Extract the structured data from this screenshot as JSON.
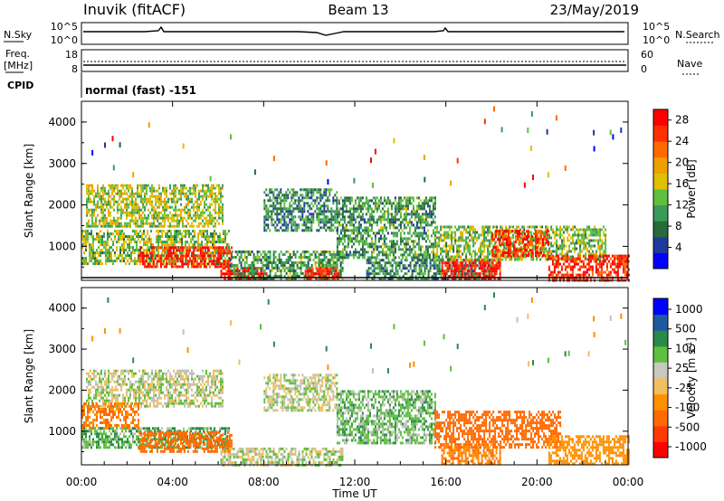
{
  "header": {
    "title_left": "Inuvik (fitACF)",
    "title_center": "Beam 13",
    "title_right": "23/May/2019"
  },
  "top_panels": {
    "nsky_label": "N.Sky",
    "nsearch_label": "N.Search",
    "nsky_ticks": [
      "10^5",
      "10^0"
    ],
    "nsearch_ticks": [
      "10^5",
      "10^0"
    ],
    "freq_label_1": "Freq.",
    "freq_label_2": "[MHz]",
    "freq_ticks": [
      "18",
      "8"
    ],
    "nave_label": "Nave",
    "nave_ticks": [
      "60",
      "0"
    ],
    "cpid_label": "CPID",
    "cpid_text": "normal (fast) -151"
  },
  "colors": {
    "power_scale": [
      "#0000ff",
      "#1f3a9a",
      "#2a6a3a",
      "#3a9a5a",
      "#5fbf3f",
      "#e0c000",
      "#f0a000",
      "#ff6a00",
      "#ff3000",
      "#ff0000"
    ],
    "velocity_scale": [
      "#ff0000",
      "#ff3a00",
      "#ff6a00",
      "#ff9000",
      "#f0c060",
      "#c8c8c0",
      "#5fbf3f",
      "#2a8a4a",
      "#1f5aa0",
      "#0000ff"
    ],
    "ground_scatter": "#c0c0b8"
  },
  "chart_data": [
    {
      "type": "heatmap",
      "name": "power",
      "ylabel": "Slant Range [km]",
      "xlabel": "",
      "y_ticks": [
        "1000",
        "2000",
        "3000",
        "4000"
      ],
      "ylim": [
        180,
        4500
      ],
      "colorbar_label": "Power [dB]",
      "colorbar_ticks": [
        "4",
        "8",
        "12",
        "16",
        "20",
        "24",
        "28"
      ],
      "colorbar_range": [
        0,
        30
      ],
      "x_range_hours": [
        0,
        24
      ],
      "regions": [
        {
          "x0": 0.2,
          "x1": 6.2,
          "y0": 1500,
          "y1": 2500,
          "level": 0.5
        },
        {
          "x0": 0.0,
          "x1": 6.5,
          "y0": 600,
          "y1": 1400,
          "level": 0.45
        },
        {
          "x0": 2.5,
          "x1": 6.6,
          "y0": 500,
          "y1": 1000,
          "level": 0.9
        },
        {
          "x0": 6.1,
          "x1": 8.1,
          "y0": 180,
          "y1": 500,
          "level": 0.95
        },
        {
          "x0": 6.5,
          "x1": 11.5,
          "y0": 200,
          "y1": 900,
          "level": 0.35
        },
        {
          "x0": 8.0,
          "x1": 11.2,
          "y0": 1400,
          "y1": 2400,
          "level": 0.3
        },
        {
          "x0": 9.8,
          "x1": 11.3,
          "y0": 180,
          "y1": 500,
          "level": 0.92
        },
        {
          "x0": 11.2,
          "x1": 15.5,
          "y0": 700,
          "y1": 2200,
          "level": 0.35
        },
        {
          "x0": 12.5,
          "x1": 18.0,
          "y0": 200,
          "y1": 700,
          "level": 0.3
        },
        {
          "x0": 15.8,
          "x1": 18.4,
          "y0": 200,
          "y1": 700,
          "level": 0.92
        },
        {
          "x0": 15.5,
          "x1": 23.0,
          "y0": 700,
          "y1": 1500,
          "level": 0.45
        },
        {
          "x0": 18.0,
          "x1": 20.5,
          "y0": 800,
          "y1": 1400,
          "level": 0.85
        },
        {
          "x0": 20.5,
          "x1": 24.0,
          "y0": 200,
          "y1": 800,
          "level": 0.88
        }
      ]
    },
    {
      "type": "heatmap",
      "name": "velocity",
      "ylabel": "Slant Range [km]",
      "xlabel": "Time UT",
      "y_ticks": [
        "1000",
        "2000",
        "3000",
        "4000"
      ],
      "ylim": [
        180,
        4500
      ],
      "x_ticks": [
        "00:00",
        "04:00",
        "08:00",
        "12:00",
        "16:00",
        "20:00",
        "00:00"
      ],
      "x_range_hours": [
        0,
        24
      ],
      "colorbar_label": "Velocity [m s",
      "colorbar_label_sup": "-1",
      "colorbar_label_close": "]",
      "colorbar_ticks": [
        "1000",
        "500",
        "100",
        "25",
        "-25",
        "-100",
        "-500",
        "-1000"
      ],
      "regions": [
        {
          "x0": 0.2,
          "x1": 6.2,
          "y0": 1600,
          "y1": 2500,
          "value": 0
        },
        {
          "x0": 0.0,
          "x1": 2.5,
          "y0": 1100,
          "y1": 1700,
          "value": -300
        },
        {
          "x0": 0.0,
          "x1": 6.5,
          "y0": 600,
          "y1": 1100,
          "value": 80
        },
        {
          "x0": 2.5,
          "x1": 6.6,
          "y0": 500,
          "y1": 1000,
          "value": -400
        },
        {
          "x0": 6.1,
          "x1": 11.5,
          "y0": 180,
          "y1": 600,
          "value": 0
        },
        {
          "x0": 8.0,
          "x1": 11.2,
          "y0": 1500,
          "y1": 2400,
          "value": 0
        },
        {
          "x0": 11.2,
          "x1": 15.5,
          "y0": 700,
          "y1": 2000,
          "value": 60
        },
        {
          "x0": 15.5,
          "x1": 21.0,
          "y0": 600,
          "y1": 1500,
          "value": -400
        },
        {
          "x0": 15.8,
          "x1": 18.4,
          "y0": 200,
          "y1": 700,
          "value": -300
        },
        {
          "x0": 20.5,
          "x1": 24.0,
          "y0": 200,
          "y1": 900,
          "value": -200
        }
      ]
    }
  ]
}
